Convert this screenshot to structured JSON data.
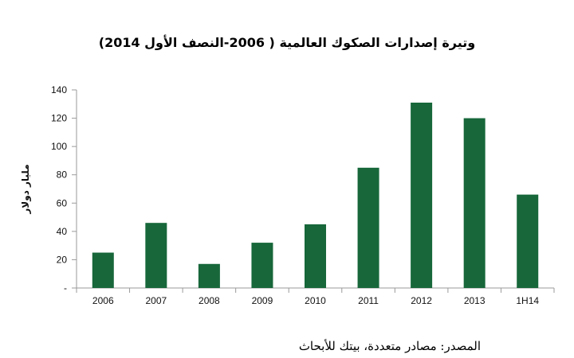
{
  "chart_data": {
    "type": "bar",
    "title": "وتيرة إصدارات الصكوك العالمية ( 2006-النصف الأول 2014)",
    "ylabel": "مليار دولار",
    "xlabel": "",
    "categories": [
      "2006",
      "2007",
      "2008",
      "2009",
      "2010",
      "2011",
      "2012",
      "2013",
      "1H14"
    ],
    "values": [
      25,
      46,
      17,
      32,
      45,
      85,
      131,
      120,
      66
    ],
    "ylim": [
      0,
      140
    ],
    "yticks": [
      {
        "value": 0,
        "label": "-"
      },
      {
        "value": 20,
        "label": "20"
      },
      {
        "value": 40,
        "label": "40"
      },
      {
        "value": 60,
        "label": "60"
      },
      {
        "value": 80,
        "label": "80"
      },
      {
        "value": 100,
        "label": "100"
      },
      {
        "value": 120,
        "label": "120"
      },
      {
        "value": 140,
        "label": "140"
      }
    ],
    "bar_color": "#17673a",
    "grid": false,
    "legend": "none"
  },
  "source_note": "المصدر: مصادر متعددة، بيتك للأبحاث"
}
